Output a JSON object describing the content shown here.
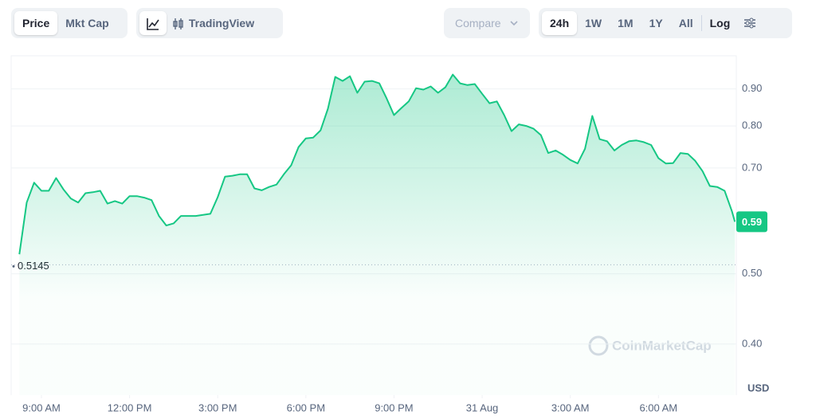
{
  "toolbar": {
    "price": "Price",
    "mkt_cap": "Mkt Cap",
    "tradingview": "TradingView",
    "compare": "Compare",
    "ranges": [
      "24h",
      "1W",
      "1M",
      "1Y",
      "All"
    ],
    "log": "Log"
  },
  "chart_data": {
    "type": "line",
    "watermark": "CoinMarketCap",
    "y_unit": "USD",
    "log_scale": true,
    "grid": true,
    "x": [
      8.25,
      8.5,
      8.75,
      9,
      9.25,
      9.5,
      9.75,
      10,
      10.25,
      10.5,
      10.75,
      11,
      11.25,
      11.5,
      11.75,
      12,
      12.25,
      12.5,
      12.75,
      13,
      13.25,
      13.5,
      13.75,
      14,
      14.25,
      14.5,
      14.75,
      15,
      15.25,
      15.5,
      15.75,
      16,
      16.25,
      16.5,
      16.75,
      17,
      17.25,
      17.5,
      17.75,
      18,
      18.25,
      18.5,
      18.75,
      19,
      19.25,
      19.5,
      19.75,
      20,
      20.25,
      20.5,
      20.75,
      21,
      21.25,
      21.5,
      21.75,
      22,
      22.25,
      22.5,
      22.75,
      23,
      23.25,
      23.5,
      23.75,
      24,
      24.25,
      24.5,
      24.75,
      25,
      25.25,
      25.5,
      25.75,
      26,
      26.25,
      26.5,
      26.75,
      27,
      27.25,
      27.5,
      27.75,
      28,
      28.25,
      28.5,
      28.75,
      29,
      29.25,
      29.5,
      29.75,
      30,
      30.25,
      30.5,
      30.75,
      31,
      31.25,
      31.5,
      31.75,
      32,
      32.25,
      32.5,
      32.6
    ],
    "series": [
      {
        "color": "#16c784",
        "values": [
          0.532,
          0.627,
          0.668,
          0.651,
          0.651,
          0.678,
          0.654,
          0.635,
          0.627,
          0.646,
          0.648,
          0.651,
          0.625,
          0.63,
          0.625,
          0.64,
          0.64,
          0.637,
          0.632,
          0.601,
          0.583,
          0.587,
          0.601,
          0.601,
          0.601,
          0.603,
          0.605,
          0.638,
          0.681,
          0.683,
          0.686,
          0.686,
          0.656,
          0.652,
          0.659,
          0.664,
          0.686,
          0.706,
          0.748,
          0.769,
          0.771,
          0.789,
          0.845,
          0.935,
          0.923,
          0.937,
          0.889,
          0.921,
          0.923,
          0.916,
          0.873,
          0.828,
          0.847,
          0.865,
          0.902,
          0.898,
          0.907,
          0.889,
          0.905,
          0.942,
          0.916,
          0.911,
          0.914,
          0.886,
          0.86,
          0.865,
          0.828,
          0.787,
          0.804,
          0.8,
          0.793,
          0.777,
          0.734,
          0.74,
          0.73,
          0.718,
          0.71,
          0.744,
          0.826,
          0.767,
          0.762,
          0.74,
          0.753,
          0.762,
          0.764,
          0.76,
          0.753,
          0.722,
          0.71,
          0.711,
          0.734,
          0.732,
          0.716,
          0.693,
          0.661,
          0.659,
          0.651,
          0.61,
          0.59
        ]
      }
    ],
    "open_price": 0.5145,
    "xlim": [
      7.97,
      32.65
    ],
    "xticks": [
      {
        "value": 9,
        "label": "9:00 AM"
      },
      {
        "value": 12,
        "label": "12:00 PM"
      },
      {
        "value": 15,
        "label": "3:00 PM"
      },
      {
        "value": 18,
        "label": "6:00 PM"
      },
      {
        "value": 21,
        "label": "9:00 PM"
      },
      {
        "value": 24,
        "label": "31 Aug"
      },
      {
        "value": 27,
        "label": "3:00 AM"
      },
      {
        "value": 30,
        "label": "6:00 AM"
      }
    ],
    "ylim": [
      0.34,
      1.0
    ],
    "yticks": [
      {
        "value": 0.4,
        "label": "0.40"
      },
      {
        "value": 0.5,
        "label": "0.50"
      },
      {
        "value": 0.7,
        "label": "0.70"
      },
      {
        "value": 0.8,
        "label": "0.80"
      },
      {
        "value": 0.9,
        "label": "0.90"
      }
    ]
  }
}
